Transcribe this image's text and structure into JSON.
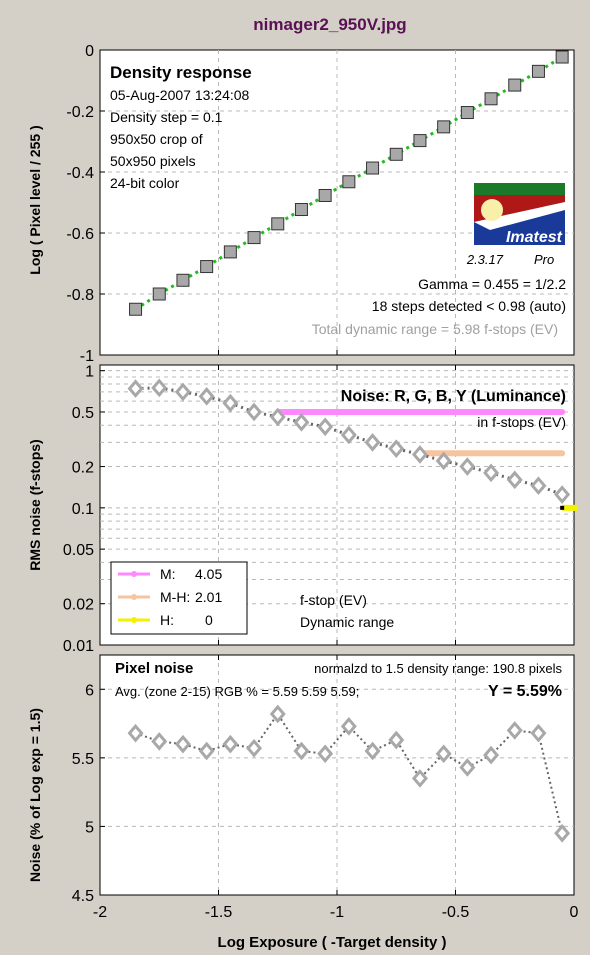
{
  "window_title": "nimager2_950V.jpg",
  "colors": {
    "background": "#d4d0c8",
    "title": "#5a1055",
    "grid": "#b8b8b8",
    "marker_fill": "#a8a8a8",
    "green_line": "#22bb22",
    "magenta": "#ff88ff",
    "peach": "#f7c4a0",
    "yellow": "#f2f200"
  },
  "shared_x_axis": {
    "label": "Log Exposure ( -Target density )",
    "ticks": [
      "-2",
      "-1.5",
      "-1",
      "-0.5",
      "0"
    ],
    "range": [
      -2,
      0
    ]
  },
  "density_panel": {
    "title": "Density response",
    "info_lines": [
      "05-Aug-2007 13:24:08",
      "Density step = 0.1",
      "950x50 crop of",
      "50x950 pixels",
      "24-bit color"
    ],
    "logo": {
      "name": "imatest-logo",
      "text": "Imatest",
      "version": "2.3.17",
      "edition": "Pro"
    },
    "stats": [
      "Gamma = 0.455 = 1/2.2",
      "18 steps detected < 0.98 (auto)"
    ],
    "dynamic_range_note": "Total dynamic range = 5.98 f-stops (EV)"
  },
  "noise_panel": {
    "title": "Noise: R, G, B, Y (Luminance)",
    "subtitle": "in f-stops (EV)",
    "legend": [
      {
        "label": "M:",
        "value": "4.05",
        "color": "#ff88ff"
      },
      {
        "label": "M-H:",
        "value": "2.01",
        "color": "#f7c4a0"
      },
      {
        "label": "H:",
        "value": "0",
        "color": "#f2f200"
      }
    ],
    "notes": [
      "f-stop (EV)",
      "Dynamic range"
    ]
  },
  "pixel_panel": {
    "title": "Pixel noise",
    "header_right": "normalzd to 1.5 density range: 190.8 pixels",
    "avg_text": "Avg. (zone 2-15) RGB % = 5.59  5.59  5.59;",
    "y_text": "Y = 5.59%"
  },
  "chart_data": [
    {
      "type": "line",
      "title": "Density response",
      "xlabel": "Log Exposure ( -Target density )",
      "ylabel": "Log ( Pixel level / 255 )",
      "xlim": [
        -2,
        0
      ],
      "ylim": [
        -1,
        0
      ],
      "yticks": [
        "0",
        "-0.2",
        "-0.4",
        "-0.6",
        "-0.8",
        "-1"
      ],
      "grid": true,
      "x": [
        -1.85,
        -1.75,
        -1.65,
        -1.55,
        -1.45,
        -1.35,
        -1.25,
        -1.15,
        -1.05,
        -0.95,
        -0.85,
        -0.75,
        -0.65,
        -0.55,
        -0.45,
        -0.35,
        -0.25,
        -0.15,
        -0.05
      ],
      "y": [
        -0.85,
        -0.8,
        -0.755,
        -0.71,
        -0.662,
        -0.615,
        -0.57,
        -0.523,
        -0.477,
        -0.432,
        -0.387,
        -0.342,
        -0.297,
        -0.252,
        -0.205,
        -0.16,
        -0.115,
        -0.07,
        -0.023
      ]
    },
    {
      "type": "line",
      "title": "Noise: R, G, B, Y (Luminance)",
      "xlabel": "Log Exposure ( -Target density )",
      "ylabel": "RMS noise (f-stops)",
      "yscale": "log",
      "ylim": [
        0.01,
        1.1
      ],
      "yticks": [
        "1",
        "0.5",
        "0.2",
        "0.1",
        "0.05",
        "0.02",
        "0.01"
      ],
      "grid": true,
      "x": [
        -1.85,
        -1.75,
        -1.65,
        -1.55,
        -1.45,
        -1.35,
        -1.25,
        -1.15,
        -1.05,
        -0.95,
        -0.85,
        -0.75,
        -0.65,
        -0.55,
        -0.45,
        -0.35,
        -0.25,
        -0.15,
        -0.05
      ],
      "y": [
        0.74,
        0.75,
        0.7,
        0.65,
        0.58,
        0.5,
        0.46,
        0.42,
        0.39,
        0.34,
        0.3,
        0.27,
        0.245,
        0.22,
        0.2,
        0.18,
        0.16,
        0.145,
        0.125
      ],
      "ranges": [
        {
          "name": "M",
          "x": [
            -1.25,
            -0.05
          ],
          "y": 0.5,
          "color": "#ff88ff"
        },
        {
          "name": "M-H",
          "x": [
            -0.65,
            -0.05
          ],
          "y": 0.25,
          "color": "#f7c4a0"
        },
        {
          "name": "H",
          "x": [
            -0.05,
            0
          ],
          "y": 0.1,
          "color": "#f2f200"
        }
      ]
    },
    {
      "type": "line",
      "title": "Pixel noise",
      "xlabel": "Log Exposure ( -Target density )",
      "ylabel": "Noise (% of Log exp = 1.5)",
      "xlim": [
        -2,
        0
      ],
      "ylim": [
        4.5,
        6.25
      ],
      "yticks": [
        "6",
        "5.5",
        "5",
        "4.5"
      ],
      "grid": true,
      "x": [
        -1.85,
        -1.75,
        -1.65,
        -1.55,
        -1.45,
        -1.35,
        -1.25,
        -1.15,
        -1.05,
        -0.95,
        -0.85,
        -0.75,
        -0.65,
        -0.55,
        -0.45,
        -0.35,
        -0.25,
        -0.15,
        -0.05
      ],
      "y": [
        5.68,
        5.62,
        5.6,
        5.55,
        5.6,
        5.57,
        5.82,
        5.55,
        5.53,
        5.73,
        5.55,
        5.63,
        5.35,
        5.53,
        5.43,
        5.52,
        5.7,
        5.68,
        4.95
      ]
    }
  ]
}
